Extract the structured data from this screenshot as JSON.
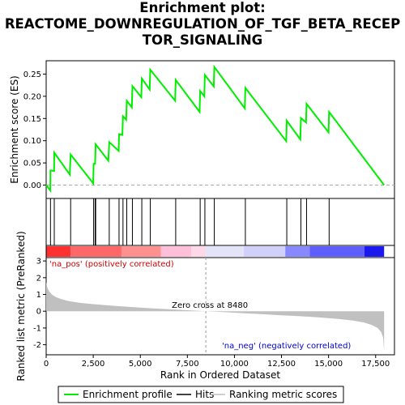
{
  "title_lines": [
    "Enrichment plot:",
    "REACTOME_DOWNREGULATION_OF_TGF_BETA_RECEP",
    "TOR_SIGNALING"
  ],
  "chart_data": {
    "type": "line",
    "xlabel": "Rank in Ordered Dataset",
    "xlim": [
      0,
      18500
    ],
    "x_ticks": [
      0,
      2500,
      5000,
      7500,
      10000,
      12500,
      15000,
      17500
    ],
    "x_tick_labels": [
      "0",
      "2,500",
      "5,000",
      "7,500",
      "10,000",
      "12,500",
      "15,000",
      "17,500"
    ],
    "panels": {
      "es": {
        "ylabel": "Enrichment score (ES)",
        "ylim": [
          -0.03,
          0.28
        ],
        "y_ticks": [
          0.0,
          0.05,
          0.1,
          0.15,
          0.2,
          0.25
        ],
        "y_tick_labels": [
          "0.00",
          "0.05",
          "0.10",
          "0.15",
          "0.20",
          "0.25"
        ],
        "series_color": "#00ee00",
        "points": [
          [
            0,
            0.0
          ],
          [
            220,
            -0.012
          ],
          [
            230,
            0.033
          ],
          [
            420,
            0.032
          ],
          [
            430,
            0.073
          ],
          [
            1250,
            0.024
          ],
          [
            1300,
            0.069
          ],
          [
            2500,
            0.004
          ],
          [
            2520,
            0.048
          ],
          [
            2600,
            0.048
          ],
          [
            2630,
            0.092
          ],
          [
            3300,
            0.055
          ],
          [
            3350,
            0.097
          ],
          [
            3850,
            0.077
          ],
          [
            3870,
            0.115
          ],
          [
            4050,
            0.113
          ],
          [
            4080,
            0.155
          ],
          [
            4250,
            0.147
          ],
          [
            4280,
            0.19
          ],
          [
            4550,
            0.175
          ],
          [
            4580,
            0.223
          ],
          [
            5050,
            0.198
          ],
          [
            5080,
            0.24
          ],
          [
            5500,
            0.215
          ],
          [
            5530,
            0.26
          ],
          [
            6850,
            0.19
          ],
          [
            6880,
            0.237
          ],
          [
            8150,
            0.165
          ],
          [
            8180,
            0.212
          ],
          [
            8400,
            0.2
          ],
          [
            8430,
            0.248
          ],
          [
            8900,
            0.222
          ],
          [
            8930,
            0.266
          ],
          [
            10550,
            0.173
          ],
          [
            10580,
            0.219
          ],
          [
            12750,
            0.099
          ],
          [
            12780,
            0.145
          ],
          [
            13500,
            0.103
          ],
          [
            13530,
            0.151
          ],
          [
            13800,
            0.141
          ],
          [
            13830,
            0.183
          ],
          [
            15000,
            0.119
          ],
          [
            15030,
            0.165
          ],
          [
            17950,
            0.0
          ]
        ]
      },
      "hits": {
        "positions": [
          230,
          430,
          1300,
          2520,
          2600,
          2630,
          3350,
          3870,
          4080,
          4280,
          4580,
          5080,
          5530,
          6880,
          8180,
          8430,
          8930,
          10580,
          12780,
          13530,
          13830,
          15030
        ]
      },
      "ranked_metric": {
        "ylabel": "Ranked list metric (PreRanked)",
        "ylim": [
          -2.6,
          3.2
        ],
        "y_ticks": [
          -2,
          -1,
          0,
          1,
          2,
          3
        ],
        "y_tick_labels": [
          "-2",
          "-1",
          "0",
          "1",
          "2",
          "3"
        ],
        "zero_cross": 8480,
        "zero_cross_label": "Zero cross at 8480",
        "pos_label": "'na_pos' (positively correlated)",
        "neg_label": "'na_neg' (negatively correlated)",
        "curve": [
          [
            0,
            1.75
          ],
          [
            50,
            1.45
          ],
          [
            150,
            1.2
          ],
          [
            300,
            1.0
          ],
          [
            500,
            0.85
          ],
          [
            800,
            0.72
          ],
          [
            1200,
            0.6
          ],
          [
            1800,
            0.5
          ],
          [
            2500,
            0.42
          ],
          [
            3500,
            0.33
          ],
          [
            4500,
            0.25
          ],
          [
            5500,
            0.18
          ],
          [
            6500,
            0.12
          ],
          [
            7500,
            0.06
          ],
          [
            8480,
            0.0
          ],
          [
            9500,
            -0.06
          ],
          [
            10500,
            -0.12
          ],
          [
            11500,
            -0.18
          ],
          [
            12500,
            -0.24
          ],
          [
            13500,
            -0.3
          ],
          [
            14500,
            -0.37
          ],
          [
            15500,
            -0.46
          ],
          [
            16300,
            -0.56
          ],
          [
            16900,
            -0.68
          ],
          [
            17300,
            -0.82
          ],
          [
            17600,
            -1.0
          ],
          [
            17800,
            -1.25
          ],
          [
            17900,
            -1.6
          ],
          [
            17950,
            -2.4
          ]
        ]
      }
    },
    "legend": [
      "Enrichment profile",
      "Hits",
      "Ranking metric scores"
    ]
  }
}
